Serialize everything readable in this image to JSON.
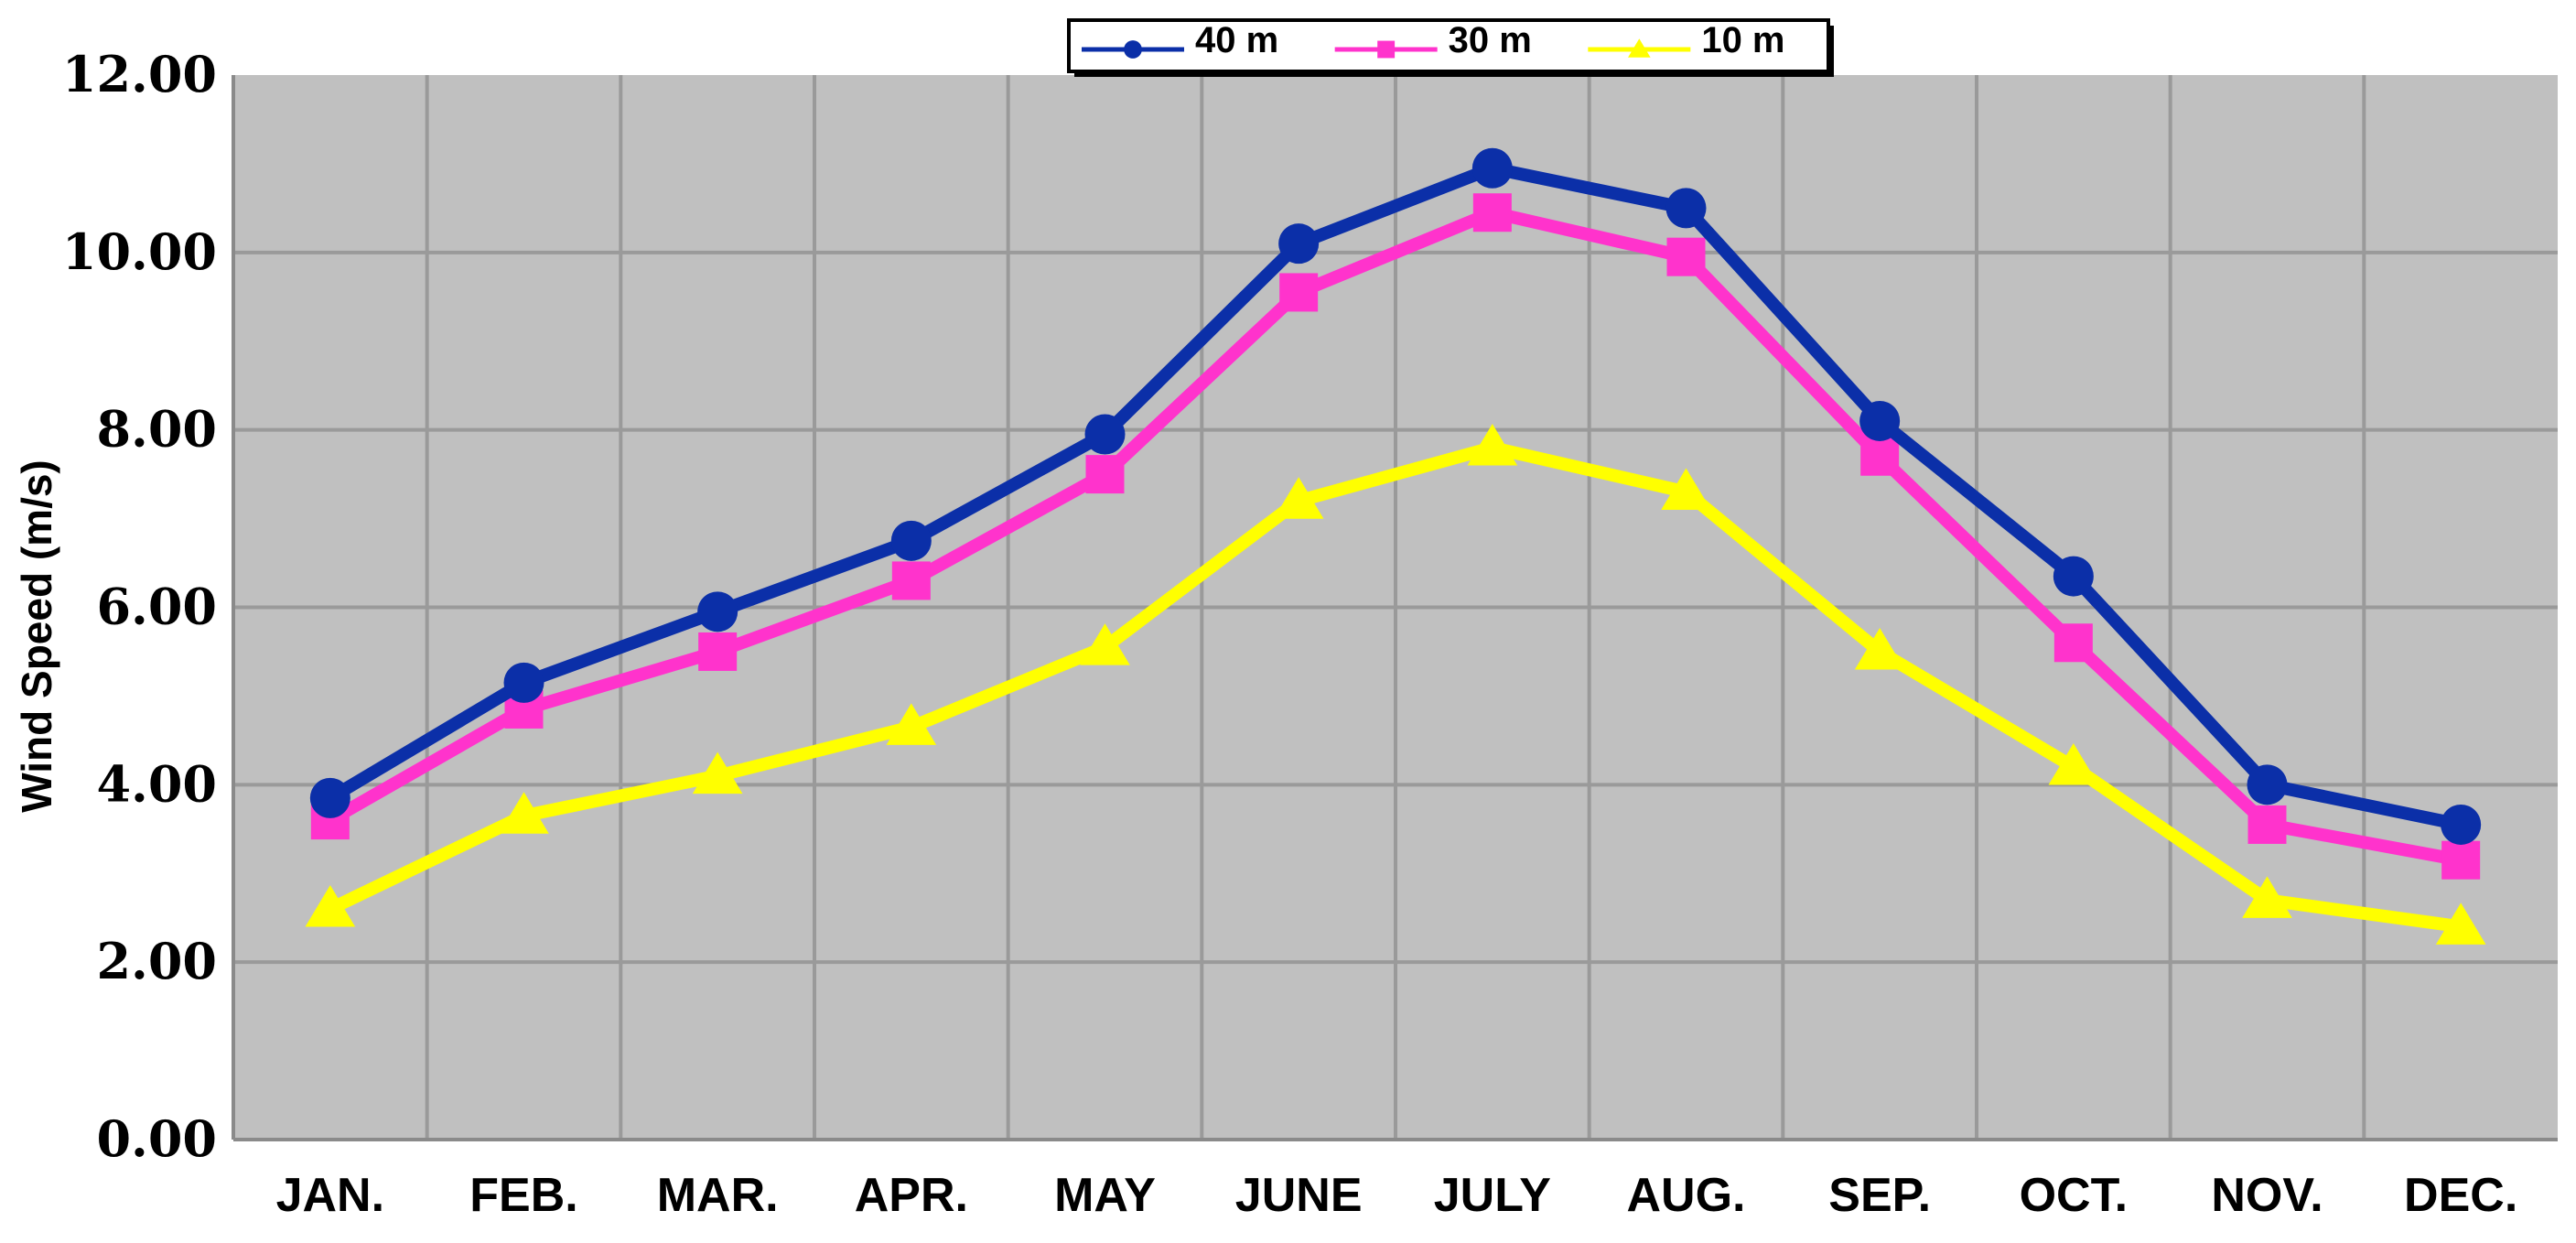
{
  "chart_data": {
    "type": "line",
    "title": "",
    "xlabel": "",
    "ylabel": "Wind Speed  (m/s)",
    "categories": [
      "JAN.",
      "FEB.",
      "MAR.",
      "APR.",
      "MAY",
      "JUNE",
      "JULY",
      "AUG.",
      "SEP.",
      "OCT.",
      "NOV.",
      "DEC."
    ],
    "yticks": [
      "0.00",
      "2.00",
      "4.00",
      "6.00",
      "8.00",
      "10.00",
      "12.00"
    ],
    "ylim": [
      0,
      12
    ],
    "grid": true,
    "legend_position": "top-center",
    "series": [
      {
        "name": "40 m",
        "color": "#0b2fa8",
        "marker": "circle",
        "values": [
          3.85,
          5.15,
          5.95,
          6.75,
          7.95,
          10.1,
          10.95,
          10.5,
          8.1,
          6.35,
          4.0,
          3.55
        ]
      },
      {
        "name": "30 m",
        "color": "#ff33cc",
        "marker": "square",
        "values": [
          3.6,
          4.85,
          5.5,
          6.3,
          7.5,
          9.55,
          10.45,
          9.95,
          7.7,
          5.6,
          3.55,
          3.15
        ]
      },
      {
        "name": "10 m",
        "color": "#ffff00",
        "marker": "triangle",
        "values": [
          2.6,
          3.65,
          4.1,
          4.65,
          5.55,
          7.2,
          7.8,
          7.3,
          5.5,
          4.2,
          2.7,
          2.4
        ]
      }
    ],
    "colors": {
      "plot_background": "#c0c0c0",
      "grid": "#9a9a9a"
    }
  }
}
